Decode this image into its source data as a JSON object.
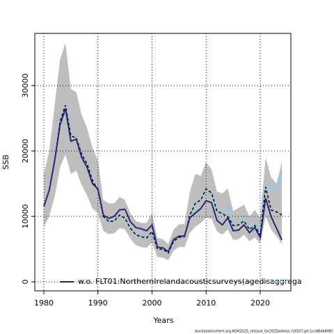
{
  "chart_data": {
    "type": "line",
    "xlabel": "Years",
    "ylabel": "SSB",
    "footnote": "stockassessment.org,NSH2025_reissue_for2025advice,r19107,git:1cc464b806f",
    "x": [
      1980,
      1981,
      1982,
      1983,
      1984,
      1985,
      1986,
      1987,
      1988,
      1989,
      1990,
      1991,
      1992,
      1993,
      1994,
      1995,
      1996,
      1997,
      1998,
      1999,
      2000,
      2001,
      2002,
      2003,
      2004,
      2005,
      2006,
      2007,
      2008,
      2009,
      2010,
      2011,
      2012,
      2013,
      2014,
      2015,
      2016,
      2017,
      2018,
      2019,
      2020,
      2021,
      2022,
      2023,
      2024
    ],
    "band": {
      "color": "#bebebe",
      "upper": [
        16500,
        20000,
        27000,
        34000,
        36500,
        29500,
        29000,
        25500,
        23500,
        20500,
        18500,
        12500,
        12000,
        12000,
        13000,
        12500,
        10500,
        9300,
        9000,
        9000,
        10500,
        6700,
        6500,
        5800,
        8000,
        8800,
        8800,
        13800,
        16500,
        16200,
        18300,
        17200,
        13800,
        13500,
        14300,
        10800,
        11300,
        11800,
        10000,
        11000,
        9800,
        19000,
        16000,
        15000,
        18300
      ],
      "lower": [
        8300,
        10000,
        13000,
        17500,
        19500,
        16500,
        17000,
        14800,
        13200,
        11200,
        10500,
        7800,
        7300,
        7400,
        8200,
        8000,
        6600,
        5600,
        5300,
        5200,
        6000,
        3800,
        3700,
        3300,
        4800,
        5300,
        5300,
        7500,
        8400,
        9000,
        9800,
        9600,
        7700,
        7200,
        8000,
        6400,
        6500,
        7200,
        6200,
        6800,
        5800,
        10000,
        8000,
        7000,
        5800
      ]
    },
    "series": [
      {
        "color": "#87ceeb",
        "dash": false,
        "values": [
          11500,
          14000,
          18500,
          24500,
          27000,
          22300,
          22000,
          19500,
          18000,
          15500,
          14000,
          10000,
          9200,
          9300,
          10200,
          9700,
          8200,
          7200,
          6900,
          6700,
          7700,
          5000,
          5000,
          4400,
          6200,
          6800,
          6900,
          10200,
          12000,
          12500,
          14200,
          13600,
          11000,
          10300,
          11600,
          8700,
          9100,
          9700,
          8200,
          9000,
          7600,
          15000,
          13600,
          14400,
          16800
        ]
      },
      {
        "color": "#000000",
        "dash": true,
        "values": [
          11500,
          14000,
          18500,
          24500,
          27000,
          22300,
          22000,
          19500,
          18000,
          15500,
          14000,
          10000,
          9200,
          9300,
          10200,
          9700,
          8200,
          7200,
          6900,
          6700,
          7700,
          5000,
          5000,
          4400,
          6200,
          6800,
          6900,
          10200,
          12000,
          12500,
          14200,
          13600,
          10800,
          10400,
          10000,
          8600,
          8700,
          9300,
          8000,
          8600,
          7200,
          14500,
          11000,
          10700,
          10200
        ]
      },
      {
        "name": "w.o. FLT01:NorthernIrelandacousticsurveys(agedisaggrega",
        "color": "#2d2476",
        "dash": false,
        "values": [
          11500,
          14000,
          18500,
          24000,
          26500,
          21500,
          21800,
          19000,
          17500,
          15000,
          14200,
          10200,
          9700,
          10000,
          11000,
          11100,
          9200,
          8300,
          8100,
          7800,
          8700,
          5300,
          5200,
          4600,
          6500,
          7000,
          7000,
          9800,
          10500,
          11200,
          12400,
          12100,
          9400,
          8700,
          9800,
          7800,
          7900,
          8700,
          7500,
          8300,
          6800,
          12800,
          10000,
          8200,
          6400
        ]
      }
    ],
    "legend_symbol_color": "#87ceeb",
    "xlim": [
      1978.33,
      2025.66
    ],
    "ylim": [
      -1383,
      37979
    ],
    "xticks": [
      1980,
      1990,
      2000,
      2010,
      2020
    ],
    "yticks": [
      0,
      10000,
      20000,
      30000
    ],
    "grid": true
  }
}
